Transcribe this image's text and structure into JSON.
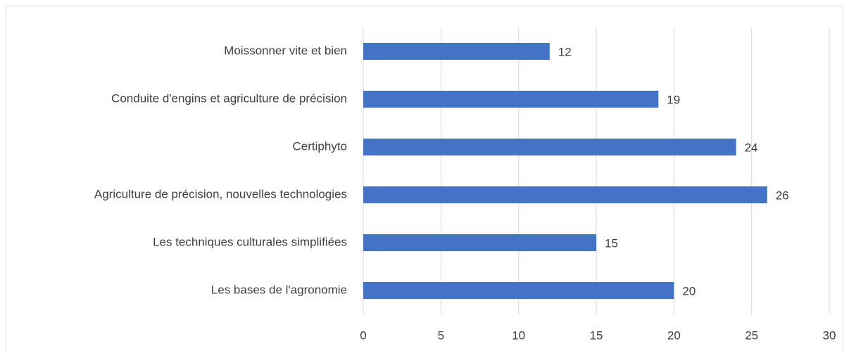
{
  "chart_data": {
    "type": "hbar",
    "categories": [
      "Moissonner vite et bien",
      "Conduite d'engins et agriculture de précision",
      "Certiphyto",
      "Agriculture de précision, nouvelles technologies",
      "Les techniques culturales simplifiées",
      "Les bases de l'agronomie"
    ],
    "values": [
      12,
      19,
      24,
      26,
      15,
      20
    ],
    "color": "#4472c4",
    "xlim": [
      0,
      30
    ],
    "xticks": [
      0,
      5,
      10,
      15,
      20,
      25,
      30
    ],
    "grid": true
  }
}
